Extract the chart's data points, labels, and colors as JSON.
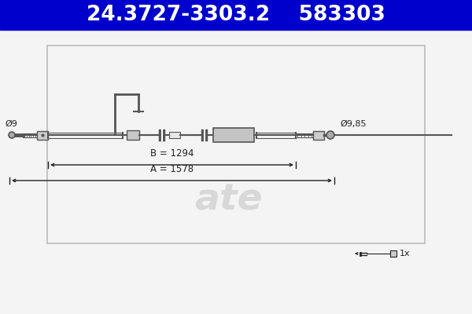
{
  "title_part1": "24.3727-3303.2",
  "title_part2": "583303",
  "title_bg": "#0000cc",
  "title_fg": "#ffffff",
  "title_fontsize": 19,
  "bg_color": "#f4f4f4",
  "cable_color": "#555555",
  "dim_color": "#222222",
  "border_color": "#bbbbbb",
  "watermark_color": "#d8d8d8",
  "dim_B": "B = 1294",
  "dim_A": "A = 1578",
  "label_left": "Ø9",
  "label_right": "Ø9,85",
  "count_label": "1x"
}
